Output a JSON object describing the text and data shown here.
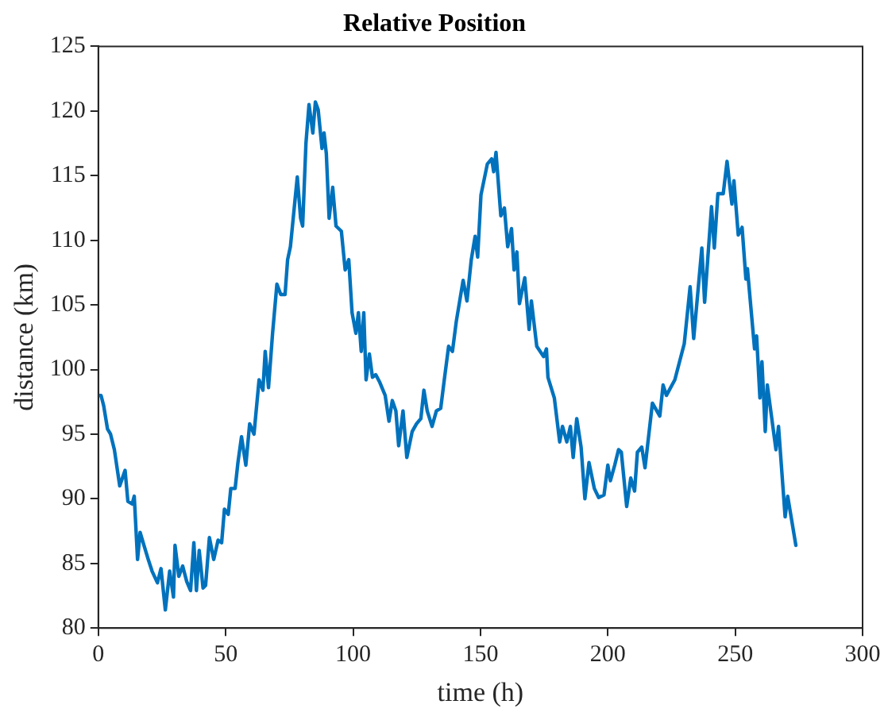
{
  "chart_data": {
    "type": "line",
    "title": "Relative Position",
    "xlabel": "time (h)",
    "ylabel": "distance (km)",
    "xlim": [
      0,
      300
    ],
    "xticks": [
      0,
      50,
      100,
      150,
      200,
      250,
      300
    ],
    "ylim": [
      80,
      125
    ],
    "yticks": [
      80,
      85,
      90,
      95,
      100,
      105,
      110,
      115,
      120,
      125
    ],
    "grid": false,
    "legend": false,
    "marker": "none",
    "line_style": "solid",
    "series": [
      {
        "color": "#0072bd",
        "x": [
          0,
          1.05,
          2.1,
          3.6,
          4.8,
          6.3,
          8.4,
          10.5,
          11.6,
          13.3,
          14.1,
          15.4,
          16.4,
          17.9,
          19.6,
          21.1,
          23.2,
          24.6,
          26.3,
          28,
          29.5,
          30.1,
          31.6,
          33.1,
          34.7,
          36.2,
          37.5,
          38.5,
          39.6,
          41.1,
          42.1,
          43.6,
          45.3,
          47,
          48.4,
          49.5,
          51,
          52,
          53.7,
          54.8,
          56.2,
          57.9,
          59.4,
          61.1,
          63.1,
          64.6,
          65.5,
          66.8,
          68.4,
          70.1,
          71.6,
          73.3,
          74.3,
          75.4,
          76.5,
          78.1,
          79.4,
          80.2,
          81.5,
          82.7,
          84.2,
          85.2,
          86.3,
          87.8,
          88.6,
          89.5,
          90.6,
          92,
          93.3,
          95.4,
          96.9,
          98.3,
          99.6,
          101.1,
          102.1,
          103.2,
          104.2,
          105.1,
          106.4,
          107.6,
          108.9,
          110.5,
          112.6,
          114.1,
          115.4,
          116.8,
          117.9,
          119.6,
          121.1,
          123.2,
          124.9,
          126.6,
          127.8,
          129.1,
          131,
          132.7,
          134.4,
          135.8,
          137.5,
          139,
          140.5,
          143.2,
          144.7,
          146.4,
          147.9,
          148.9,
          150.2,
          152.7,
          154.4,
          155.2,
          156.1,
          158,
          159.4,
          160.7,
          162.2,
          163.2,
          164.3,
          165.3,
          167.4,
          169.1,
          170,
          172.1,
          174.8,
          175.9,
          176.5,
          179,
          181.1,
          182.2,
          183.9,
          185.3,
          186.4,
          187.8,
          189.5,
          191,
          192.6,
          194.7,
          196.4,
          198.5,
          200,
          201,
          202.7,
          204.2,
          205.3,
          207.4,
          209,
          210.5,
          211.6,
          213.3,
          214.6,
          217.5,
          220.4,
          221.7,
          223,
          226.3,
          230,
          232.3,
          233.7,
          236.9,
          238,
          240.7,
          241.8,
          243.2,
          245.3,
          246.8,
          248.7,
          249.5,
          251.2,
          252.7,
          254.2,
          254.8,
          257.6,
          258.4,
          259.7,
          260.5,
          261.8,
          262.6,
          266,
          267,
          269.6,
          270.6,
          273.8
        ],
        "values": [
          98,
          98,
          97.2,
          95.4,
          95,
          93.8,
          91,
          92.2,
          89.8,
          89.6,
          90.2,
          85.3,
          87.4,
          86.4,
          85.3,
          84.4,
          83.5,
          84.6,
          81.4,
          84.4,
          82.4,
          86.4,
          84,
          84.8,
          83.6,
          82.9,
          86.6,
          82.9,
          86,
          83.1,
          83.3,
          87,
          85.3,
          86.8,
          86.6,
          89.2,
          88.8,
          90.8,
          90.8,
          92.8,
          94.8,
          92.6,
          95.8,
          95,
          99.2,
          98.4,
          101.4,
          98.6,
          102.8,
          106.6,
          105.8,
          105.8,
          108.5,
          109.5,
          111.7,
          114.9,
          111.7,
          111.1,
          117.5,
          120.5,
          118.3,
          120.7,
          120.1,
          117.1,
          118.3,
          116.7,
          111.7,
          114.1,
          111.1,
          110.7,
          107.7,
          108.5,
          104.4,
          102.8,
          104.4,
          101.4,
          104.4,
          99.2,
          101.2,
          99.4,
          99.6,
          99,
          98,
          96,
          97.6,
          96.8,
          94.1,
          96.8,
          93.2,
          95.2,
          95.8,
          96.2,
          98.4,
          96.8,
          95.6,
          96.8,
          97,
          99.2,
          101.8,
          101.4,
          103.7,
          106.9,
          105.3,
          108.5,
          110.3,
          108.7,
          113.5,
          115.9,
          116.3,
          115.3,
          116.8,
          111.9,
          112.5,
          109.5,
          110.9,
          107.7,
          109.1,
          105.1,
          107.1,
          103.1,
          105.3,
          101.8,
          101,
          101.6,
          99.4,
          97.8,
          94.4,
          95.6,
          94.4,
          95.6,
          93.2,
          96.2,
          94,
          90,
          92.8,
          90.8,
          90.1,
          90.3,
          92.6,
          91.4,
          92.6,
          93.8,
          93.6,
          89.4,
          91.6,
          90.6,
          93.6,
          94,
          92.4,
          97.4,
          96.4,
          98.8,
          98,
          99.2,
          102,
          106.4,
          102.4,
          109.4,
          105.2,
          112.6,
          109.4,
          113.6,
          113.6,
          116.1,
          112.8,
          114.6,
          110.4,
          111,
          107,
          107.8,
          101.6,
          102.6,
          97.8,
          100.6,
          95.2,
          98.8,
          93.8,
          95.6,
          88.6,
          90.2,
          86.4
        ]
      }
    ]
  }
}
